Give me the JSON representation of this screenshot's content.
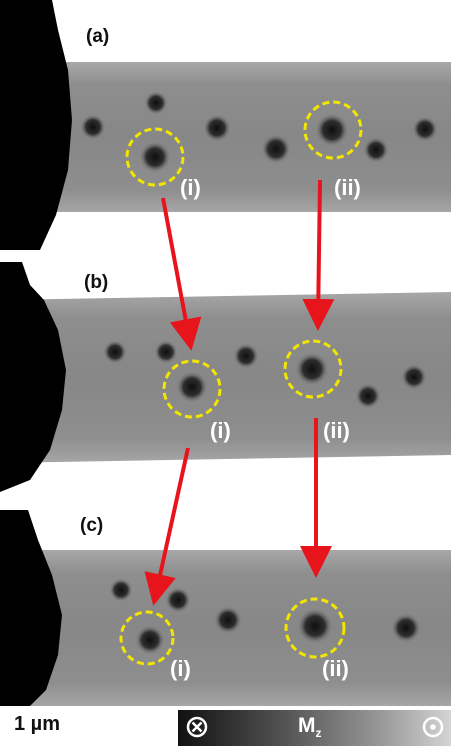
{
  "panels": [
    {
      "label": "(a)",
      "markers": [
        {
          "label": "(i)"
        },
        {
          "label": "(ii)"
        }
      ]
    },
    {
      "label": "(b)",
      "markers": [
        {
          "label": "(i)"
        },
        {
          "label": "(ii)"
        }
      ]
    },
    {
      "label": "(c)",
      "markers": [
        {
          "label": "(i)"
        },
        {
          "label": "(ii)"
        }
      ]
    }
  ],
  "scale_bar": {
    "label": "1 µm"
  },
  "colorbar": {
    "label": "M",
    "subscript": "z",
    "left_icon": "circle-cross-icon",
    "right_icon": "circle-dot-icon"
  },
  "colors": {
    "marker_circle": "#f2e600",
    "arrow": "#e8141c",
    "background_stripe": "#8c8c8c"
  }
}
